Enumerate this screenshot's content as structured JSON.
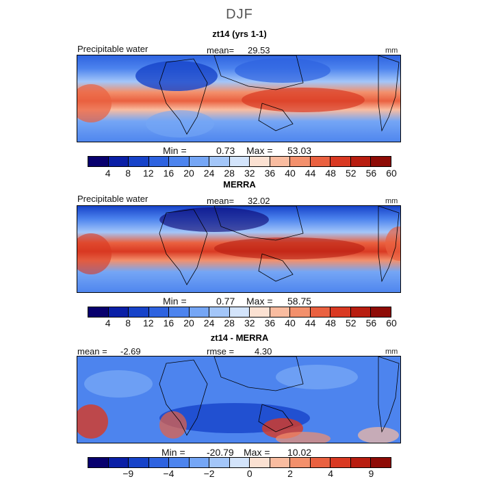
{
  "season": "DJF",
  "panels": [
    {
      "title": "zt14 (yrs 1-1)",
      "left": "Precipitable water",
      "center_label": "mean=",
      "center_value": "29.53",
      "right": "mm",
      "min_label": "Min =",
      "min_value": "0.73",
      "max_label": "Max =",
      "max_value": "53.03"
    },
    {
      "title": "MERRA",
      "left": "Precipitable water",
      "center_label": "mean=",
      "center_value": "32.02",
      "right": "mm",
      "min_label": "Min =",
      "min_value": "0.77",
      "max_label": "Max =",
      "max_value": "58.75"
    },
    {
      "title": "zt14 - MERRA",
      "left": "mean =",
      "left_value": "-2.69",
      "center_label": "rmse =",
      "center_value": "4.30",
      "right": "mm",
      "min_label": "Min =",
      "min_value": "-20.79",
      "max_label": "Max =",
      "max_value": "10.02"
    }
  ],
  "colors": {
    "abs_scale": [
      "#08006e",
      "#0a1fa6",
      "#1743c9",
      "#2e63e0",
      "#4d84ee",
      "#75a6f5",
      "#a3c6f9",
      "#d3e4fb",
      "#fbe1d2",
      "#f9bca0",
      "#f3906c",
      "#ea6140",
      "#d93922",
      "#b81d10",
      "#8e0b06"
    ],
    "diff_scale": [
      "#08006e",
      "#0a1fa6",
      "#1743c9",
      "#2e63e0",
      "#4d84ee",
      "#75a6f5",
      "#a3c6f9",
      "#d3e4fb",
      "#fbe1d2",
      "#f9bca0",
      "#f3906c",
      "#ea6140",
      "#d93922",
      "#b81d10",
      "#8e0b06"
    ]
  },
  "chart_data": [
    {
      "type": "heatmap",
      "title": "zt14 (yrs 1-1)",
      "variable": "Precipitable water",
      "units": "mm",
      "mean": 29.53,
      "min": 0.73,
      "max": 53.03,
      "colorbar_ticks": [
        "4",
        "8",
        "12",
        "16",
        "20",
        "24",
        "28",
        "32",
        "36",
        "40",
        "44",
        "48",
        "52",
        "56",
        "60"
      ]
    },
    {
      "type": "heatmap",
      "title": "MERRA",
      "variable": "Precipitable water",
      "units": "mm",
      "mean": 32.02,
      "min": 0.77,
      "max": 58.75,
      "colorbar_ticks": [
        "4",
        "8",
        "12",
        "16",
        "20",
        "24",
        "28",
        "32",
        "36",
        "40",
        "44",
        "48",
        "52",
        "56",
        "60"
      ]
    },
    {
      "type": "heatmap",
      "title": "zt14 - MERRA",
      "units": "mm",
      "mean": -2.69,
      "rmse": 4.3,
      "min": -20.79,
      "max": 10.02,
      "colorbar_ticks": [
        "−9",
        "−4",
        "−2",
        "0",
        "2",
        "4",
        "9"
      ]
    }
  ]
}
